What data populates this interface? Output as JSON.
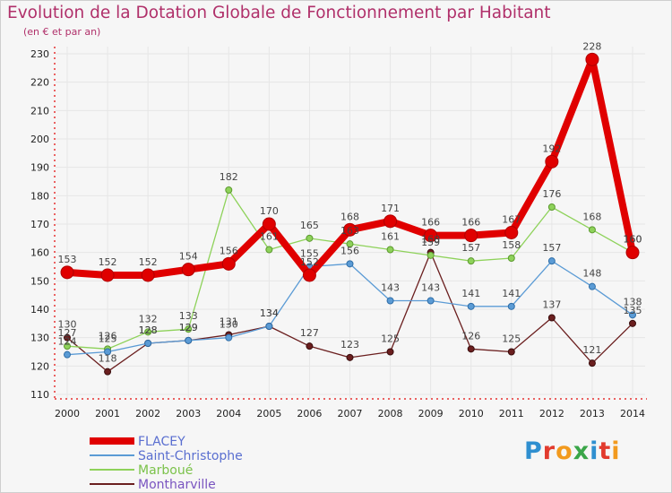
{
  "title": "Evolution de la Dotation Globale de Fonctionnement par Habitant",
  "subtitle": "(en € et par an)",
  "logo": {
    "text": "Proxiti",
    "colors": [
      "#2f8fd0",
      "#e23b2e",
      "#f29a1e",
      "#3aa648",
      "#2f8fd0",
      "#e23b2e",
      "#f29a1e"
    ]
  },
  "chart_data": {
    "type": "line",
    "x": [
      "2000",
      "2001",
      "2002",
      "2003",
      "2004",
      "2005",
      "2006",
      "2007",
      "2008",
      "2009",
      "2010",
      "2011",
      "2012",
      "2013",
      "2014"
    ],
    "ylim": [
      110,
      230
    ],
    "yticks": [
      110,
      120,
      130,
      140,
      150,
      160,
      170,
      180,
      190,
      200,
      210,
      220,
      230
    ],
    "series": [
      {
        "name": "FLACEY",
        "color": "#e00000",
        "values": [
          153,
          152,
          152,
          154,
          156,
          170,
          152,
          168,
          171,
          166,
          166,
          167,
          192,
          228,
          160
        ]
      },
      {
        "name": "Saint-Christophe",
        "color": "#5b9bd5",
        "values": [
          124,
          125,
          128,
          129,
          130,
          134,
          155,
          156,
          143,
          143,
          141,
          141,
          157,
          148,
          138
        ]
      },
      {
        "name": "Marboué",
        "color": "#8ed25a",
        "values": [
          127,
          126,
          132,
          133,
          182,
          161,
          165,
          163,
          161,
          159,
          157,
          158,
          176,
          168,
          160
        ]
      },
      {
        "name": "Montharville",
        "color": "#6b1f1f",
        "values": [
          130,
          118,
          128,
          129,
          131,
          134,
          127,
          123,
          125,
          160,
          126,
          125,
          137,
          121,
          135
        ]
      }
    ]
  }
}
